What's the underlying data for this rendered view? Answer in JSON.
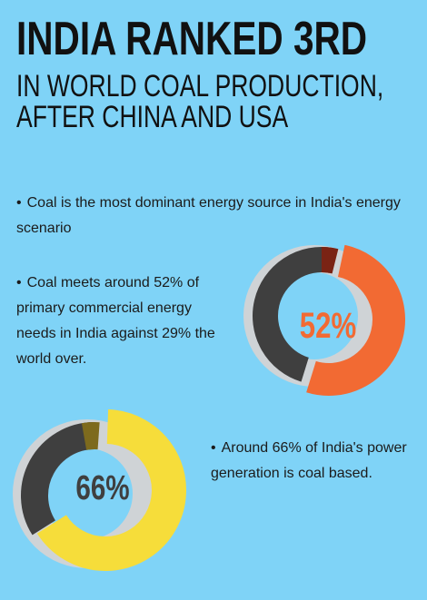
{
  "header": {
    "title": "INDIA RANKED 3RD",
    "subtitle_line1": "IN WORLD COAL PRODUCTION,",
    "subtitle_line2": "AFTER CHINA AND USA"
  },
  "bullets": {
    "bullet_mark": "•",
    "point1": "Coal is the most dominant energy source  in India's energy scenario",
    "point2": "Coal meets around 52% of primary commercial  energy needs in India  against 29% the world over.",
    "point3": "Around 66% of India's power generation is coal based."
  },
  "donut_52": {
    "label": "52%",
    "fraction": 0.52,
    "fill_color": "#f26a33",
    "edge_color": "#7a2314",
    "rest_color": "#3f3f3f",
    "label_color": "#f26a33"
  },
  "donut_66": {
    "label": "66%",
    "fraction": 0.66,
    "fill_color": "#f6dd3a",
    "edge_color": "#7d6a1d",
    "rest_color": "#3f3f3f",
    "label_color": "#3f3f3f"
  },
  "colors": {
    "background": "#7fd3f7",
    "shadow": "#cfd3d6"
  }
}
